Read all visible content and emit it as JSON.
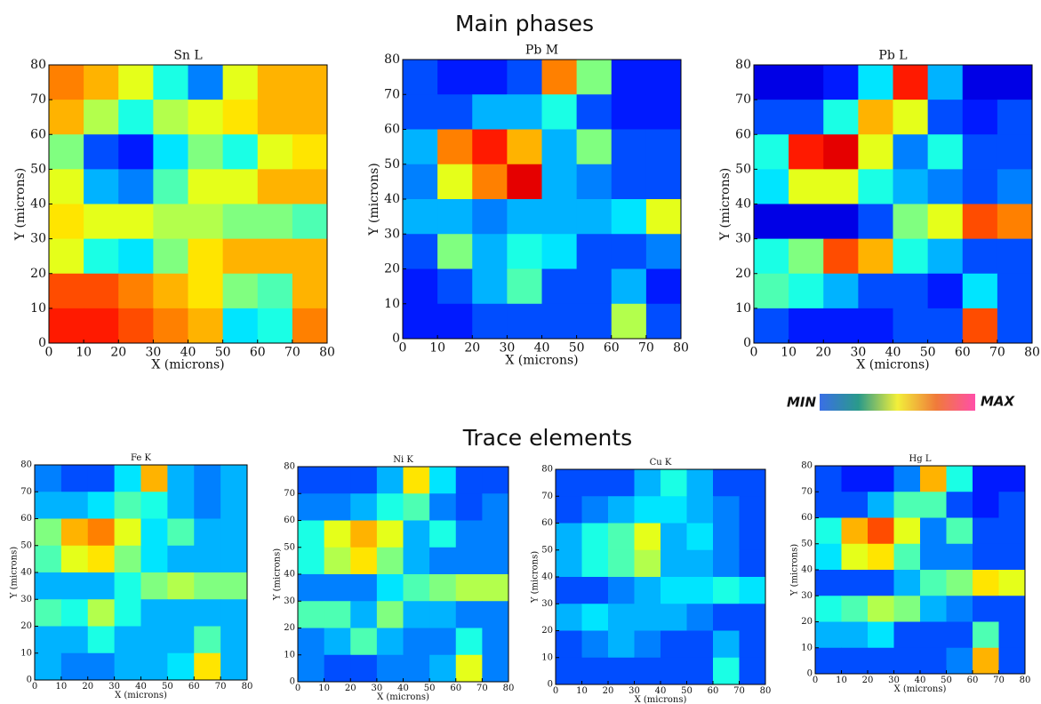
{
  "headings": [
    "Main phases",
    "Trace elements"
  ],
  "colorbar": {
    "min_label": "MIN",
    "max_label": "MAX"
  },
  "chart_data": [
    {
      "type": "heatmap",
      "title": "Sn L",
      "xlabel": "X (microns)",
      "ylabel": "Y (microns)",
      "colormap": "jet",
      "xlim": [
        0,
        80
      ],
      "ylim": [
        0,
        80
      ],
      "xticks": [
        0,
        10,
        20,
        30,
        40,
        50,
        60,
        70,
        80
      ],
      "yticks": [
        0,
        10,
        20,
        30,
        40,
        50,
        60,
        70,
        80
      ],
      "z": [
        [
          0.75,
          0.7,
          0.6,
          0.4,
          0.25,
          0.6,
          0.7,
          0.7
        ],
        [
          0.7,
          0.55,
          0.4,
          0.55,
          0.6,
          0.65,
          0.7,
          0.7
        ],
        [
          0.5,
          0.2,
          0.15,
          0.35,
          0.5,
          0.4,
          0.6,
          0.65
        ],
        [
          0.6,
          0.3,
          0.25,
          0.45,
          0.6,
          0.6,
          0.7,
          0.7
        ],
        [
          0.65,
          0.6,
          0.6,
          0.55,
          0.55,
          0.5,
          0.5,
          0.45
        ],
        [
          0.6,
          0.4,
          0.35,
          0.5,
          0.65,
          0.7,
          0.7,
          0.7
        ],
        [
          0.8,
          0.8,
          0.75,
          0.7,
          0.65,
          0.5,
          0.45,
          0.7
        ],
        [
          0.85,
          0.85,
          0.8,
          0.75,
          0.7,
          0.35,
          0.4,
          0.75
        ]
      ]
    },
    {
      "type": "heatmap",
      "title": "Pb M",
      "xlabel": "X (microns)",
      "ylabel": "Y (microns)",
      "colormap": "jet",
      "xlim": [
        0,
        80
      ],
      "ylim": [
        0,
        80
      ],
      "xticks": [
        0,
        10,
        20,
        30,
        40,
        50,
        60,
        70,
        80
      ],
      "yticks": [
        0,
        10,
        20,
        30,
        40,
        50,
        60,
        70,
        80
      ],
      "z": [
        [
          0.2,
          0.15,
          0.15,
          0.2,
          0.75,
          0.5,
          0.15,
          0.15
        ],
        [
          0.2,
          0.2,
          0.3,
          0.3,
          0.4,
          0.2,
          0.15,
          0.15
        ],
        [
          0.3,
          0.75,
          0.85,
          0.7,
          0.3,
          0.5,
          0.2,
          0.2
        ],
        [
          0.25,
          0.6,
          0.75,
          0.9,
          0.3,
          0.25,
          0.2,
          0.2
        ],
        [
          0.3,
          0.3,
          0.25,
          0.3,
          0.3,
          0.3,
          0.35,
          0.6
        ],
        [
          0.2,
          0.5,
          0.3,
          0.4,
          0.35,
          0.2,
          0.2,
          0.25
        ],
        [
          0.15,
          0.2,
          0.3,
          0.45,
          0.2,
          0.2,
          0.3,
          0.15
        ],
        [
          0.15,
          0.15,
          0.2,
          0.2,
          0.2,
          0.2,
          0.55,
          0.2
        ]
      ]
    },
    {
      "type": "heatmap",
      "title": "Pb L",
      "xlabel": "X (microns)",
      "ylabel": "Y (microns)",
      "colormap": "jet",
      "xlim": [
        0,
        80
      ],
      "ylim": [
        0,
        80
      ],
      "xticks": [
        0,
        10,
        20,
        30,
        40,
        50,
        60,
        70,
        80
      ],
      "yticks": [
        0,
        10,
        20,
        30,
        40,
        50,
        60,
        70,
        80
      ],
      "z": [
        [
          0.1,
          0.1,
          0.15,
          0.35,
          0.85,
          0.3,
          0.1,
          0.1
        ],
        [
          0.2,
          0.2,
          0.4,
          0.7,
          0.6,
          0.2,
          0.15,
          0.2
        ],
        [
          0.4,
          0.85,
          0.9,
          0.6,
          0.25,
          0.4,
          0.2,
          0.2
        ],
        [
          0.35,
          0.6,
          0.6,
          0.4,
          0.3,
          0.25,
          0.2,
          0.25
        ],
        [
          0.1,
          0.1,
          0.1,
          0.2,
          0.5,
          0.6,
          0.8,
          0.75
        ],
        [
          0.4,
          0.5,
          0.8,
          0.7,
          0.4,
          0.3,
          0.2,
          0.2
        ],
        [
          0.45,
          0.4,
          0.3,
          0.2,
          0.2,
          0.15,
          0.35,
          0.2
        ],
        [
          0.2,
          0.15,
          0.15,
          0.15,
          0.2,
          0.2,
          0.8,
          0.2
        ]
      ]
    },
    {
      "type": "heatmap",
      "title": "Fe K",
      "xlabel": "X (microns)",
      "ylabel": "Y (microns)",
      "colormap": "jet",
      "xlim": [
        0,
        80
      ],
      "ylim": [
        0,
        80
      ],
      "xticks": [
        0,
        10,
        20,
        30,
        40,
        50,
        60,
        70,
        80
      ],
      "yticks": [
        0,
        10,
        20,
        30,
        40,
        50,
        60,
        70,
        80
      ],
      "z": [
        [
          0.25,
          0.2,
          0.2,
          0.35,
          0.7,
          0.3,
          0.25,
          0.3
        ],
        [
          0.3,
          0.3,
          0.35,
          0.45,
          0.4,
          0.3,
          0.25,
          0.3
        ],
        [
          0.5,
          0.7,
          0.75,
          0.6,
          0.35,
          0.45,
          0.3,
          0.3
        ],
        [
          0.45,
          0.6,
          0.65,
          0.5,
          0.35,
          0.3,
          0.3,
          0.3
        ],
        [
          0.3,
          0.3,
          0.3,
          0.4,
          0.5,
          0.55,
          0.5,
          0.5
        ],
        [
          0.45,
          0.4,
          0.55,
          0.4,
          0.3,
          0.3,
          0.3,
          0.3
        ],
        [
          0.3,
          0.3,
          0.4,
          0.3,
          0.3,
          0.3,
          0.45,
          0.3
        ],
        [
          0.3,
          0.25,
          0.25,
          0.3,
          0.3,
          0.35,
          0.65,
          0.3
        ]
      ]
    },
    {
      "type": "heatmap",
      "title": "Ni K",
      "xlabel": "X (microns)",
      "ylabel": "Y (microns)",
      "colormap": "jet",
      "xlim": [
        0,
        80
      ],
      "ylim": [
        0,
        80
      ],
      "xticks": [
        0,
        10,
        20,
        30,
        40,
        50,
        60,
        70,
        80
      ],
      "yticks": [
        0,
        10,
        20,
        30,
        40,
        50,
        60,
        70,
        80
      ],
      "z": [
        [
          0.2,
          0.2,
          0.2,
          0.3,
          0.65,
          0.35,
          0.2,
          0.2
        ],
        [
          0.25,
          0.25,
          0.3,
          0.4,
          0.45,
          0.25,
          0.2,
          0.25
        ],
        [
          0.4,
          0.6,
          0.7,
          0.6,
          0.3,
          0.4,
          0.25,
          0.25
        ],
        [
          0.4,
          0.55,
          0.65,
          0.5,
          0.3,
          0.25,
          0.25,
          0.25
        ],
        [
          0.25,
          0.25,
          0.25,
          0.35,
          0.45,
          0.5,
          0.55,
          0.55
        ],
        [
          0.45,
          0.45,
          0.3,
          0.5,
          0.3,
          0.3,
          0.25,
          0.25
        ],
        [
          0.25,
          0.3,
          0.45,
          0.3,
          0.25,
          0.25,
          0.4,
          0.25
        ],
        [
          0.25,
          0.2,
          0.2,
          0.25,
          0.25,
          0.3,
          0.6,
          0.25
        ]
      ]
    },
    {
      "type": "heatmap",
      "title": "Cu K",
      "xlabel": "X (microns)",
      "ylabel": "Y (microns)",
      "colormap": "jet",
      "xlim": [
        0,
        80
      ],
      "ylim": [
        0,
        80
      ],
      "xticks": [
        0,
        10,
        20,
        30,
        40,
        50,
        60,
        70,
        80
      ],
      "yticks": [
        0,
        10,
        20,
        30,
        40,
        50,
        60,
        70,
        80
      ],
      "z": [
        [
          0.2,
          0.2,
          0.2,
          0.3,
          0.4,
          0.3,
          0.2,
          0.2
        ],
        [
          0.2,
          0.25,
          0.3,
          0.35,
          0.35,
          0.3,
          0.25,
          0.2
        ],
        [
          0.3,
          0.4,
          0.45,
          0.6,
          0.3,
          0.35,
          0.25,
          0.2
        ],
        [
          0.3,
          0.4,
          0.45,
          0.55,
          0.3,
          0.3,
          0.25,
          0.2
        ],
        [
          0.2,
          0.2,
          0.25,
          0.3,
          0.35,
          0.35,
          0.4,
          0.35
        ],
        [
          0.3,
          0.35,
          0.3,
          0.3,
          0.3,
          0.25,
          0.2,
          0.2
        ],
        [
          0.2,
          0.25,
          0.3,
          0.25,
          0.2,
          0.2,
          0.3,
          0.2
        ],
        [
          0.2,
          0.2,
          0.2,
          0.2,
          0.2,
          0.2,
          0.4,
          0.2
        ]
      ]
    },
    {
      "type": "heatmap",
      "title": "Hg L",
      "xlabel": "X (microns)",
      "ylabel": "Y (microns)",
      "colormap": "jet",
      "xlim": [
        0,
        80
      ],
      "ylim": [
        0,
        80
      ],
      "xticks": [
        0,
        10,
        20,
        30,
        40,
        50,
        60,
        70,
        80
      ],
      "yticks": [
        0,
        10,
        20,
        30,
        40,
        50,
        60,
        70,
        80
      ],
      "z": [
        [
          0.2,
          0.15,
          0.15,
          0.25,
          0.7,
          0.4,
          0.15,
          0.15
        ],
        [
          0.2,
          0.2,
          0.3,
          0.45,
          0.45,
          0.2,
          0.15,
          0.2
        ],
        [
          0.4,
          0.7,
          0.8,
          0.6,
          0.25,
          0.45,
          0.2,
          0.2
        ],
        [
          0.35,
          0.6,
          0.65,
          0.45,
          0.25,
          0.25,
          0.2,
          0.2
        ],
        [
          0.2,
          0.2,
          0.2,
          0.3,
          0.45,
          0.5,
          0.65,
          0.6
        ],
        [
          0.4,
          0.45,
          0.55,
          0.5,
          0.3,
          0.25,
          0.2,
          0.2
        ],
        [
          0.3,
          0.3,
          0.35,
          0.2,
          0.2,
          0.2,
          0.45,
          0.2
        ],
        [
          0.2,
          0.2,
          0.2,
          0.2,
          0.2,
          0.25,
          0.7,
          0.2
        ]
      ]
    }
  ]
}
